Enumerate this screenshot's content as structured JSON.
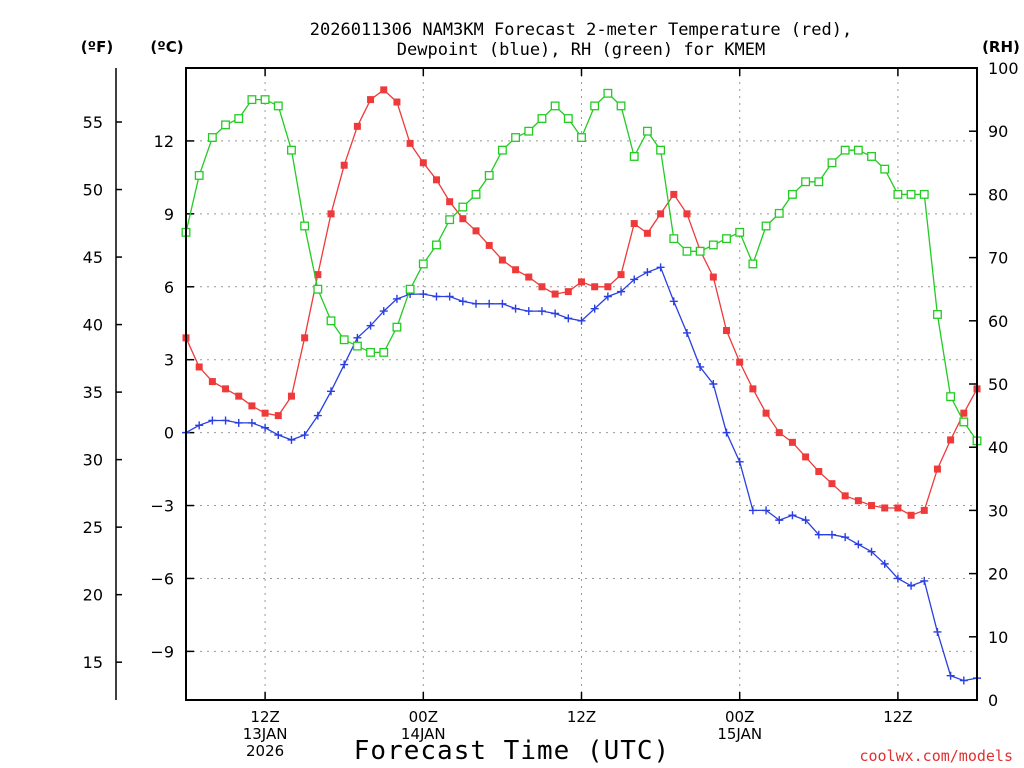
{
  "chart_data": {
    "type": "line",
    "title": [
      "2026011306 NAM3KM Forecast 2-meter Temperature (red),",
      "Dewpoint (blue), RH (green) for KMEM"
    ],
    "xlabel": "Forecast Time (UTC)",
    "unit_labels": {
      "fahrenheit": "(ºF)",
      "celsius": "(ºC)",
      "rh": "(RH)"
    },
    "credit": "coolwx.com/models",
    "x_range_hours": [
      0,
      60
    ],
    "x_ticks": [
      {
        "hour": 6,
        "lines": [
          "12Z",
          "13JAN",
          "2026"
        ]
      },
      {
        "hour": 18,
        "lines": [
          "00Z",
          "14JAN"
        ]
      },
      {
        "hour": 30,
        "lines": [
          "12Z"
        ]
      },
      {
        "hour": 42,
        "lines": [
          "00Z",
          "15JAN"
        ]
      },
      {
        "hour": 54,
        "lines": [
          "12Z"
        ]
      }
    ],
    "y_celsius": {
      "range": [
        -11,
        15
      ],
      "ticks": [
        -9,
        -6,
        -3,
        0,
        3,
        6,
        9,
        12
      ]
    },
    "y_fahrenheit": {
      "ticks": [
        15,
        20,
        25,
        30,
        35,
        40,
        45,
        50,
        55
      ]
    },
    "y_rh": {
      "range": [
        0,
        100
      ],
      "ticks": [
        0,
        10,
        20,
        30,
        40,
        50,
        60,
        70,
        80,
        90,
        100
      ]
    },
    "series": [
      {
        "name": "2-meter Temperature",
        "axis": "celsius",
        "color": "#ee3a3a",
        "marker": "filled-square",
        "values": [
          3.9,
          2.7,
          2.1,
          1.8,
          1.5,
          1.1,
          0.8,
          0.7,
          1.5,
          3.9,
          6.5,
          9.0,
          11.0,
          12.6,
          13.7,
          14.1,
          13.6,
          11.9,
          11.1,
          10.4,
          9.5,
          8.8,
          8.3,
          7.7,
          7.1,
          6.7,
          6.4,
          6.0,
          5.7,
          5.8,
          6.2,
          6.0,
          6.0,
          6.5,
          8.6,
          8.2,
          9.0,
          9.8,
          9.0,
          7.5,
          6.4,
          4.2,
          2.9,
          1.8,
          0.8,
          0.0,
          -0.4,
          -1.0,
          -1.6,
          -2.1,
          -2.6,
          -2.8,
          -3.0,
          -3.1,
          -3.1,
          -3.4,
          -3.2,
          -1.5,
          -0.3,
          0.8,
          1.8
        ]
      },
      {
        "name": "Dewpoint",
        "axis": "celsius",
        "color": "#2a3fe0",
        "marker": "plus",
        "values": [
          0.0,
          0.3,
          0.5,
          0.5,
          0.4,
          0.4,
          0.2,
          -0.1,
          -0.3,
          -0.1,
          0.7,
          1.7,
          2.8,
          3.9,
          4.4,
          5.0,
          5.5,
          5.7,
          5.7,
          5.6,
          5.6,
          5.4,
          5.3,
          5.3,
          5.3,
          5.1,
          5.0,
          5.0,
          4.9,
          4.7,
          4.6,
          5.1,
          5.6,
          5.8,
          6.3,
          6.6,
          6.8,
          5.4,
          4.1,
          2.7,
          2.0,
          0.0,
          -1.2,
          -3.2,
          -3.2,
          -3.6,
          -3.4,
          -3.6,
          -4.2,
          -4.2,
          -4.3,
          -4.6,
          -4.9,
          -5.4,
          -6.0,
          -6.3,
          -6.1,
          -8.2,
          -10.0,
          -10.2,
          -10.1
        ]
      },
      {
        "name": "RH",
        "axis": "rh",
        "color": "#22cc22",
        "marker": "open-square",
        "values": [
          74,
          83,
          89,
          91,
          92,
          95,
          95,
          94,
          87,
          75,
          65,
          60,
          57,
          56,
          55,
          55,
          59,
          65,
          69,
          72,
          76,
          78,
          80,
          83,
          87,
          89,
          90,
          92,
          94,
          92,
          89,
          94,
          96,
          94,
          86,
          90,
          87,
          73,
          71,
          71,
          72,
          73,
          74,
          69,
          75,
          77,
          80,
          82,
          82,
          85,
          87,
          87,
          86,
          84,
          80,
          80,
          80,
          61,
          48,
          44,
          41
        ]
      }
    ]
  }
}
